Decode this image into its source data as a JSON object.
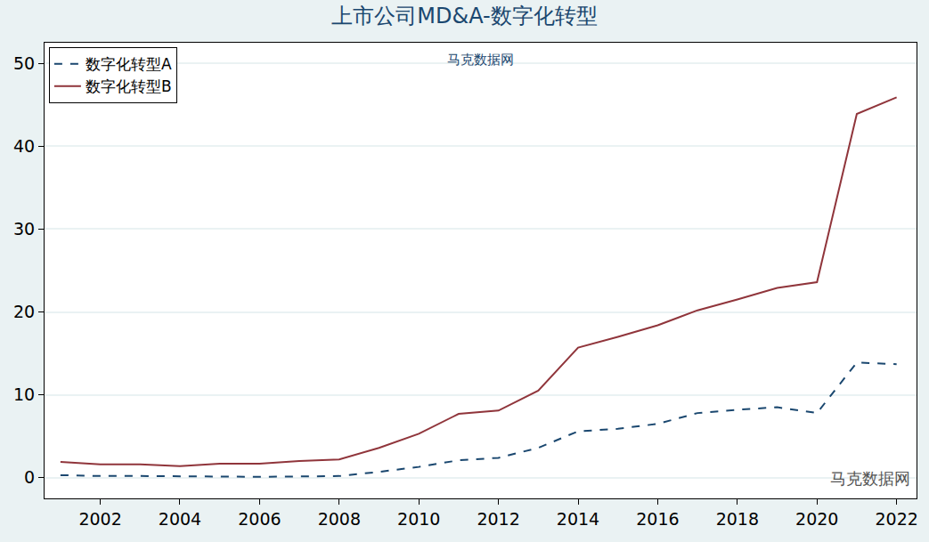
{
  "chart_data": {
    "type": "line",
    "title": "上市公司MD&A-数字化转型",
    "subtitle": "马克数据网",
    "annotations": [
      "马克数据网"
    ],
    "x": [
      2001,
      2002,
      2003,
      2004,
      2005,
      2006,
      2007,
      2008,
      2009,
      2010,
      2011,
      2012,
      2013,
      2014,
      2015,
      2016,
      2017,
      2018,
      2019,
      2020,
      2021,
      2022
    ],
    "series": [
      {
        "name": "数字化转型A",
        "color": "#1a476f",
        "line_style": "dash",
        "values": [
          0.3,
          0.2,
          0.2,
          0.15,
          0.15,
          0.1,
          0.15,
          0.2,
          0.7,
          1.3,
          2.1,
          2.4,
          3.6,
          5.6,
          5.9,
          6.5,
          7.8,
          8.2,
          8.5,
          7.8,
          13.9,
          13.7
        ]
      },
      {
        "name": "数字化转型B",
        "color": "#90353b",
        "line_style": "solid",
        "values": [
          1.9,
          1.6,
          1.6,
          1.4,
          1.7,
          1.7,
          2.0,
          2.2,
          3.6,
          5.3,
          7.7,
          8.1,
          10.5,
          15.7,
          17.0,
          18.4,
          20.2,
          21.5,
          22.9,
          23.6,
          43.9,
          45.9
        ]
      }
    ],
    "xlim": [
      2000.6,
      2022.5
    ],
    "xticks": [
      2002,
      2004,
      2006,
      2008,
      2010,
      2012,
      2014,
      2016,
      2018,
      2020,
      2022
    ],
    "ylim": [
      -2.5,
      52.5
    ],
    "yticks": [
      0,
      10,
      20,
      30,
      40,
      50
    ],
    "grid": true,
    "legend": "top-left"
  }
}
